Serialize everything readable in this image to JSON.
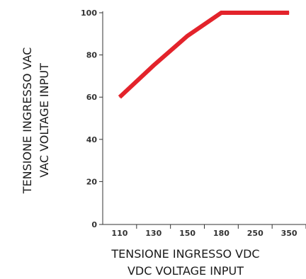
{
  "chart_data": {
    "type": "line",
    "categories": [
      "110",
      "130",
      "150",
      "180",
      "250",
      "350"
    ],
    "series": [
      {
        "values": [
          60,
          75,
          89,
          100,
          100,
          100
        ]
      }
    ],
    "ylim": [
      0,
      100
    ],
    "yticks": [
      0,
      20,
      40,
      60,
      80,
      100
    ],
    "xlabel": [
      "TENSIONE INGRESSO VDC",
      "VDC VOLTAGE INPUT"
    ],
    "ylabel": [
      "TENSIONE INGRESSO VAC",
      "VAC VOLTAGE INPUT"
    ],
    "grid": false,
    "line_color": "#e3232b",
    "axis_color": "#333333"
  }
}
